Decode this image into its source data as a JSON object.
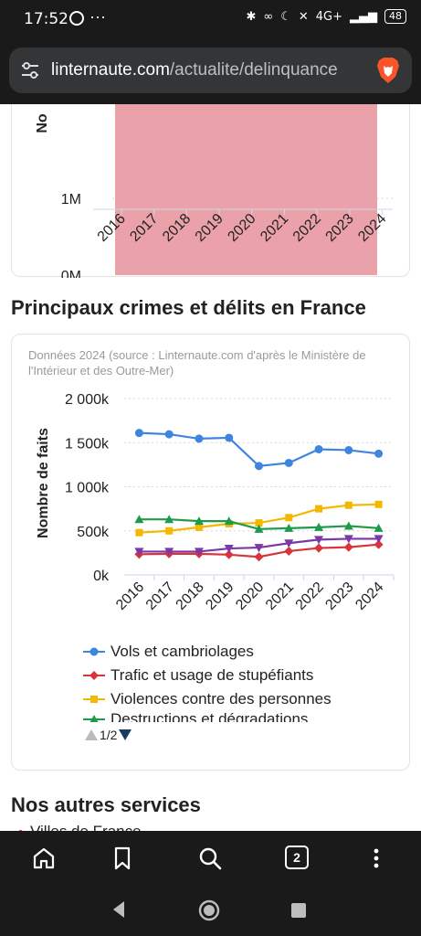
{
  "status_bar": {
    "time": "17:52",
    "network": "4G+",
    "battery": "48"
  },
  "browser": {
    "url_domain": "linternaute.com",
    "url_path": "/actualite/delinquance",
    "tab_count": "2"
  },
  "chart1": {
    "type": "bar",
    "ytick_labels": [
      "0M",
      "1M"
    ],
    "ylabel_partial": "No",
    "categories": [
      "2016",
      "2017",
      "2018",
      "2019",
      "2020",
      "2021",
      "2022",
      "2023",
      "2024"
    ],
    "bar_color": "#eba1aa"
  },
  "section1": {
    "title": "Principaux crimes et délits en France"
  },
  "chart2": {
    "source_note": "Données 2024 (source : Linternaute.com d'après le Ministère de l'Intérieur et des Outre-Mer)",
    "legend_page": "1/2"
  },
  "chart_data": {
    "type": "line",
    "title": "",
    "xlabel": "",
    "ylabel": "Nombre de faits",
    "x": [
      "2016",
      "2017",
      "2018",
      "2019",
      "2020",
      "2021",
      "2022",
      "2023",
      "2024"
    ],
    "ylim": [
      0,
      2000
    ],
    "ytick_labels": [
      "0k",
      "500k",
      "1 000k",
      "1 500k",
      "2 000k"
    ],
    "grid": true,
    "legend_position": "bottom",
    "series": [
      {
        "name": "Vols et cambriolages",
        "color": "#3d85de",
        "marker": "circle",
        "values": [
          1610,
          1595,
          1545,
          1555,
          1235,
          1270,
          1425,
          1415,
          1375
        ]
      },
      {
        "name": "Trafic et usage de stupéfiants",
        "color": "#d9343a",
        "marker": "diamond",
        "values": [
          235,
          240,
          240,
          230,
          205,
          270,
          305,
          315,
          345
        ]
      },
      {
        "name": "Violences contre des personnes",
        "color": "#f5b800",
        "marker": "square",
        "values": [
          480,
          500,
          540,
          580,
          590,
          650,
          750,
          790,
          800
        ]
      },
      {
        "name": "Destructions et dégradations",
        "color": "#1e9b4a",
        "marker": "triangle",
        "values": [
          630,
          630,
          610,
          610,
          520,
          530,
          540,
          555,
          530
        ]
      },
      {
        "name": "",
        "color": "#7a38a8",
        "marker": "triangle-down",
        "values": [
          265,
          265,
          265,
          300,
          310,
          360,
          400,
          410,
          410
        ]
      }
    ]
  },
  "section2": {
    "title": "Nos autres services",
    "items": [
      "Villes de France"
    ]
  },
  "icons": {
    "home": "home-icon",
    "bookmark": "bookmark-icon",
    "search": "search-icon",
    "tabs": "tabs-icon",
    "menu": "more-vertical-icon"
  }
}
